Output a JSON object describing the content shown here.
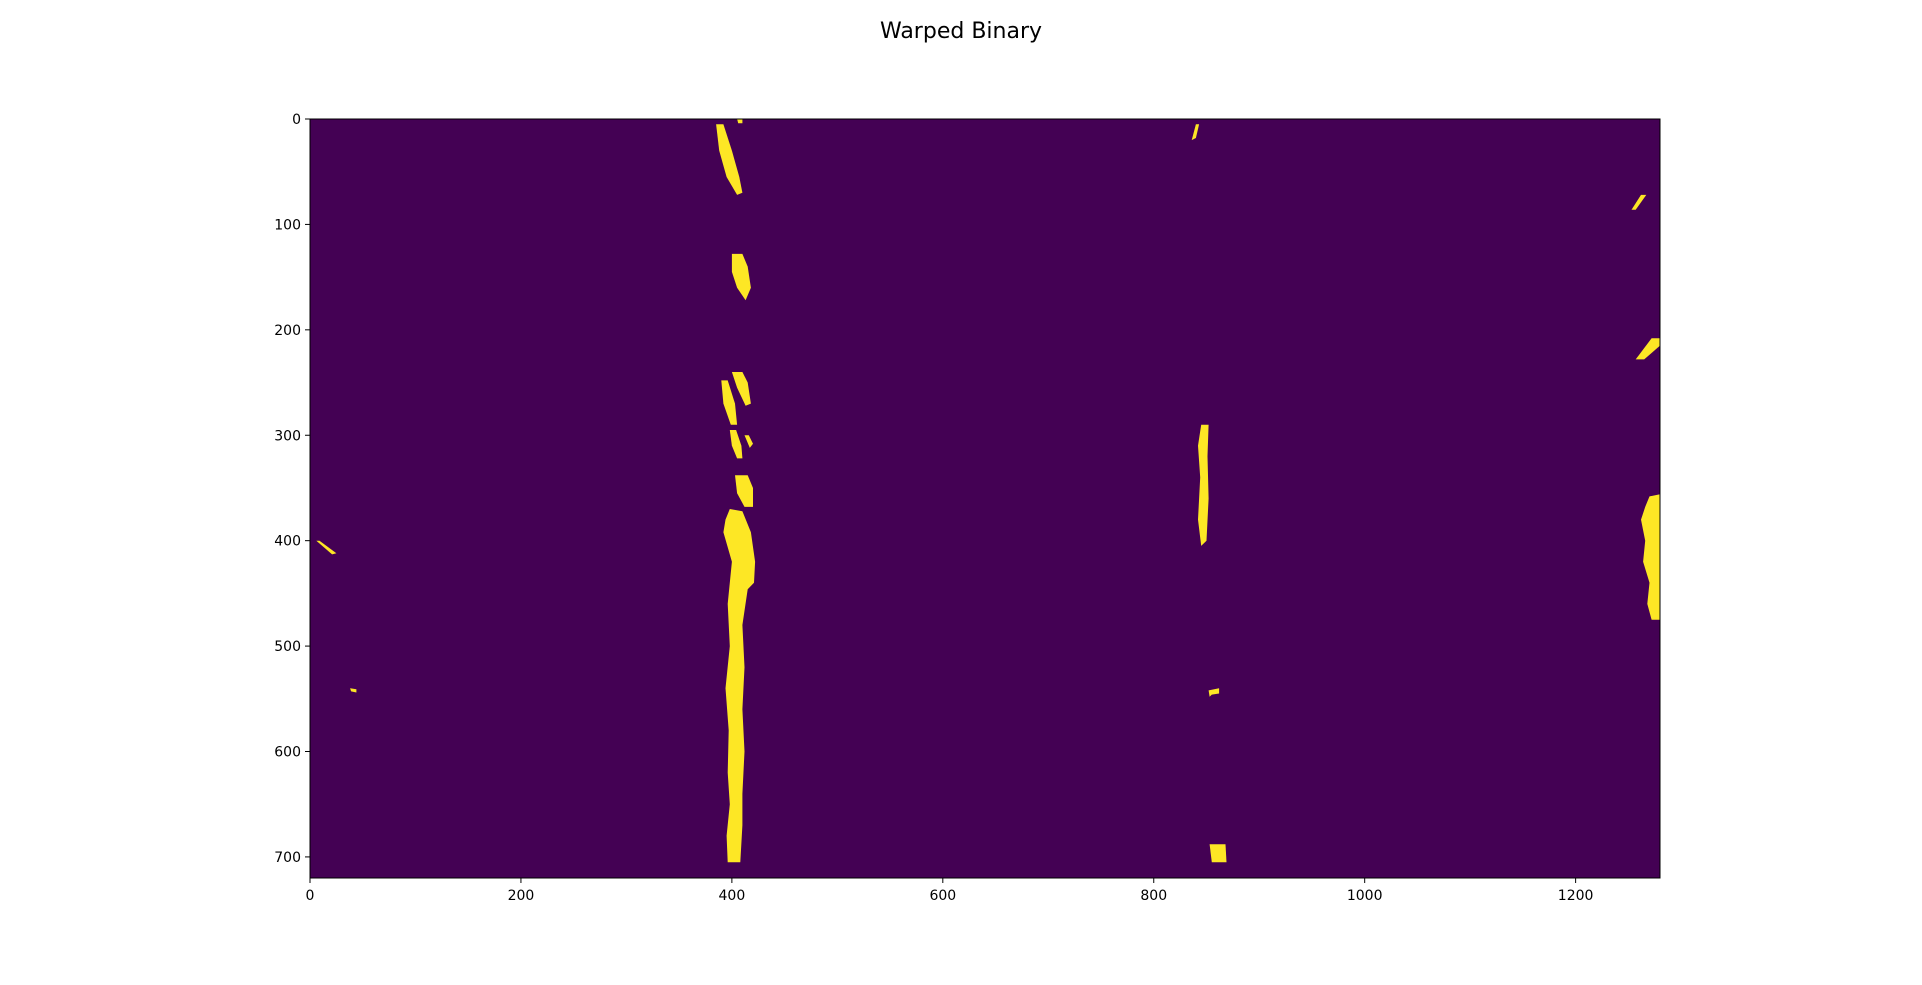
{
  "chart_data": {
    "type": "heatmap",
    "title": "Warped Binary",
    "xlabel": "",
    "ylabel": "",
    "image_size": {
      "width": 1280,
      "height": 720
    },
    "xlim": [
      0,
      1280
    ],
    "ylim": [
      720,
      0
    ],
    "xticks": [
      0,
      200,
      400,
      600,
      800,
      1000,
      1200
    ],
    "yticks": [
      0,
      100,
      200,
      300,
      400,
      500,
      600,
      700
    ],
    "xtick_labels": [
      "0",
      "200",
      "400",
      "600",
      "800",
      "1000",
      "1200"
    ],
    "ytick_labels": [
      "0",
      "100",
      "200",
      "300",
      "400",
      "500",
      "600",
      "700"
    ],
    "values_legend": {
      "0": "background",
      "1": "detected pixel"
    },
    "colormap": {
      "0": "#440154",
      "1": "#fde725"
    },
    "blobs": [
      {
        "name": "left-lane-top",
        "points": [
          [
            385,
            5
          ],
          [
            392,
            5
          ],
          [
            400,
            30
          ],
          [
            407,
            55
          ],
          [
            410,
            70
          ],
          [
            405,
            72
          ],
          [
            395,
            55
          ],
          [
            388,
            30
          ]
        ]
      },
      {
        "name": "left-lane-top-dot",
        "points": [
          [
            405,
            0
          ],
          [
            410,
            0
          ],
          [
            410,
            4
          ],
          [
            406,
            4
          ]
        ]
      },
      {
        "name": "left-lane-segment-2",
        "points": [
          [
            400,
            128
          ],
          [
            410,
            128
          ],
          [
            415,
            140
          ],
          [
            418,
            160
          ],
          [
            413,
            172
          ],
          [
            405,
            160
          ],
          [
            400,
            145
          ]
        ]
      },
      {
        "name": "left-lane-segment-3a",
        "points": [
          [
            400,
            240
          ],
          [
            410,
            240
          ],
          [
            415,
            250
          ],
          [
            418,
            270
          ],
          [
            413,
            272
          ],
          [
            405,
            255
          ]
        ]
      },
      {
        "name": "left-lane-segment-3b",
        "points": [
          [
            390,
            248
          ],
          [
            396,
            248
          ],
          [
            403,
            270
          ],
          [
            405,
            290
          ],
          [
            399,
            290
          ],
          [
            392,
            270
          ]
        ]
      },
      {
        "name": "left-lane-segment-3c",
        "points": [
          [
            398,
            295
          ],
          [
            404,
            295
          ],
          [
            409,
            310
          ],
          [
            410,
            322
          ],
          [
            405,
            322
          ],
          [
            400,
            310
          ]
        ]
      },
      {
        "name": "left-lane-segment-3d",
        "points": [
          [
            412,
            300
          ],
          [
            416,
            300
          ],
          [
            420,
            308
          ],
          [
            417,
            312
          ]
        ]
      },
      {
        "name": "left-lane-bottom-a",
        "points": [
          [
            403,
            338
          ],
          [
            415,
            338
          ],
          [
            420,
            350
          ],
          [
            420,
            368
          ],
          [
            412,
            368
          ],
          [
            405,
            355
          ]
        ]
      },
      {
        "name": "left-lane-bottom-b",
        "points": [
          [
            398,
            370
          ],
          [
            410,
            372
          ],
          [
            418,
            392
          ],
          [
            422,
            420
          ],
          [
            421,
            440
          ],
          [
            415,
            446
          ],
          [
            410,
            480
          ],
          [
            412,
            520
          ],
          [
            410,
            560
          ],
          [
            412,
            600
          ],
          [
            410,
            640
          ],
          [
            410,
            670
          ],
          [
            408,
            705
          ],
          [
            396,
            705
          ],
          [
            395,
            680
          ],
          [
            398,
            650
          ],
          [
            396,
            620
          ],
          [
            397,
            580
          ],
          [
            394,
            540
          ],
          [
            398,
            500
          ],
          [
            396,
            460
          ],
          [
            400,
            420
          ],
          [
            392,
            392
          ],
          [
            394,
            380
          ]
        ]
      },
      {
        "name": "right-lane-top",
        "points": [
          [
            840,
            5
          ],
          [
            843,
            5
          ],
          [
            840,
            18
          ],
          [
            836,
            20
          ]
        ]
      },
      {
        "name": "right-lane-mid",
        "points": [
          [
            845,
            290
          ],
          [
            852,
            290
          ],
          [
            851,
            320
          ],
          [
            852,
            360
          ],
          [
            850,
            400
          ],
          [
            845,
            405
          ],
          [
            842,
            380
          ],
          [
            844,
            340
          ],
          [
            842,
            310
          ]
        ]
      },
      {
        "name": "right-lane-dot",
        "points": [
          [
            852,
            542
          ],
          [
            862,
            540
          ],
          [
            862,
            545
          ],
          [
            855,
            546
          ],
          [
            853,
            548
          ]
        ]
      },
      {
        "name": "right-lane-bottom",
        "points": [
          [
            853,
            688
          ],
          [
            868,
            688
          ],
          [
            869,
            705
          ],
          [
            855,
            705
          ]
        ]
      },
      {
        "name": "far-right-top",
        "points": [
          [
            1262,
            72
          ],
          [
            1267,
            72
          ],
          [
            1257,
            86
          ],
          [
            1253,
            86
          ]
        ]
      },
      {
        "name": "far-right-mid",
        "points": [
          [
            1272,
            208
          ],
          [
            1280,
            208
          ],
          [
            1280,
            215
          ],
          [
            1265,
            228
          ],
          [
            1257,
            228
          ]
        ]
      },
      {
        "name": "far-right-hatch",
        "points": [
          [
            1270,
            358
          ],
          [
            1280,
            356
          ],
          [
            1280,
            475
          ],
          [
            1272,
            475
          ],
          [
            1268,
            460
          ],
          [
            1270,
            440
          ],
          [
            1264,
            420
          ],
          [
            1266,
            400
          ],
          [
            1262,
            380
          ],
          [
            1266,
            368
          ]
        ]
      },
      {
        "name": "left-edge-streak",
        "points": [
          [
            6,
            400
          ],
          [
            9,
            400
          ],
          [
            25,
            412
          ],
          [
            21,
            413
          ]
        ]
      },
      {
        "name": "left-edge-dot",
        "points": [
          [
            38,
            540
          ],
          [
            44,
            541
          ],
          [
            44,
            544
          ],
          [
            39,
            543
          ]
        ]
      }
    ]
  }
}
